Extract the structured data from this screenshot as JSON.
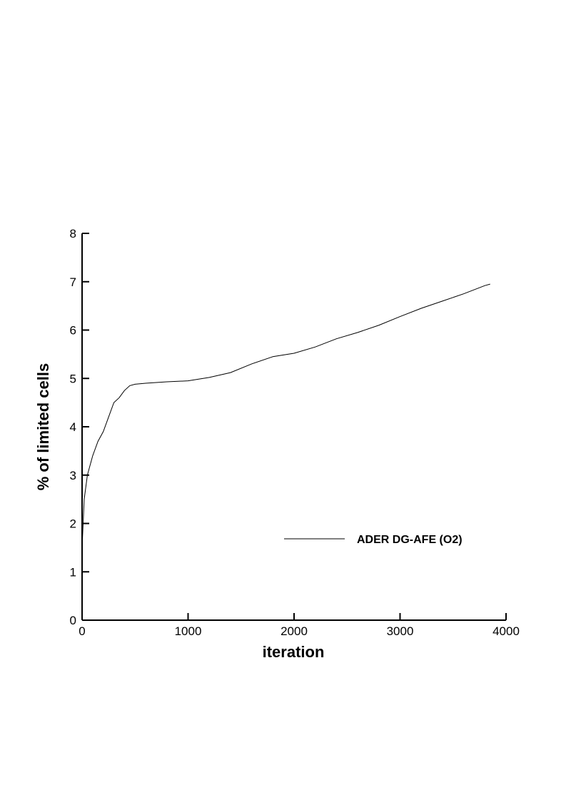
{
  "chart_data": {
    "type": "line",
    "x_label": "iteration",
    "y_label": "% of limited cells",
    "xlim": [
      0,
      4000
    ],
    "xticks": [
      0,
      1000,
      2000,
      3000,
      4000
    ],
    "ylim": [
      0,
      8
    ],
    "yticks": [
      0,
      1,
      2,
      3,
      4,
      5,
      6,
      7,
      8
    ],
    "x": [
      0,
      20,
      50,
      100,
      150,
      200,
      250,
      300,
      350,
      400,
      450,
      500,
      600,
      800,
      1000,
      1200,
      1400,
      1600,
      1800,
      2000,
      2200,
      2400,
      2600,
      2800,
      3000,
      3200,
      3400,
      3600,
      3800,
      3850
    ],
    "series": [
      {
        "name": "ADER DG-AFE (O2)",
        "color": "#000000",
        "values": [
          1.5,
          2.5,
          3.0,
          3.4,
          3.7,
          3.9,
          4.2,
          4.5,
          4.6,
          4.75,
          4.85,
          4.88,
          4.9,
          4.93,
          4.95,
          5.02,
          5.12,
          5.3,
          5.45,
          5.52,
          5.65,
          5.82,
          5.95,
          6.1,
          6.28,
          6.45,
          6.6,
          6.75,
          6.92,
          6.95
        ]
      }
    ]
  }
}
